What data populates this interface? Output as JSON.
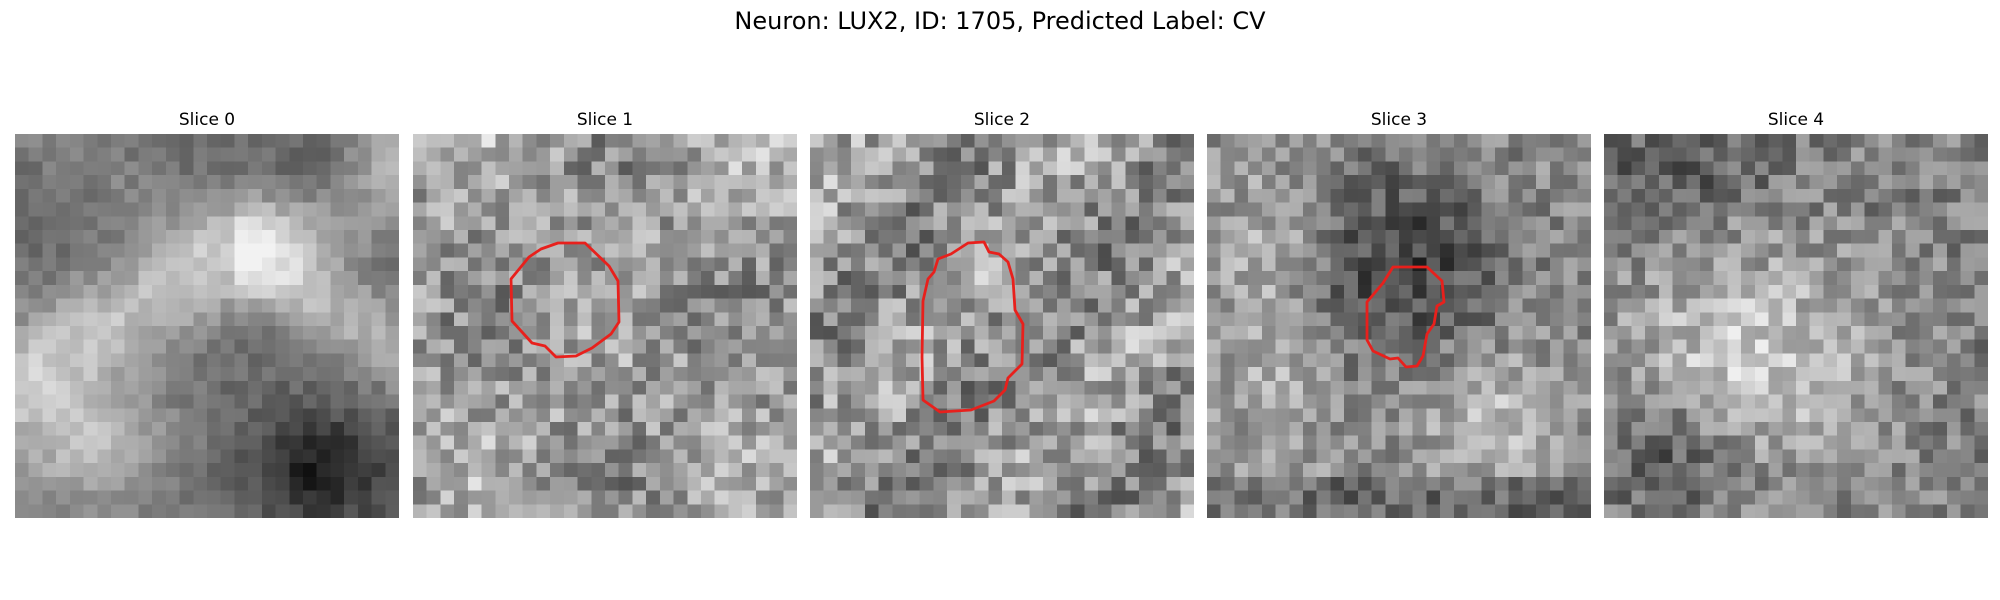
{
  "figure": {
    "title": "Neuron: LUX2, ID: 1705, Predicted Label: CV",
    "colormap": "gray",
    "roi_color": "#e8201c"
  },
  "panels": [
    {
      "title": "Slice 0",
      "has_roi": false
    },
    {
      "title": "Slice 1",
      "has_roi": true
    },
    {
      "title": "Slice 2",
      "has_roi": true
    },
    {
      "title": "Slice 3",
      "has_roi": true
    },
    {
      "title": "Slice 4",
      "has_roi": false
    }
  ]
}
